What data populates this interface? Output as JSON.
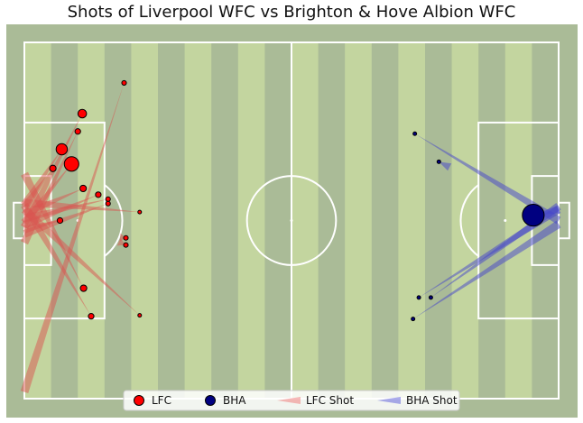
{
  "chart_data": {
    "type": "scatter",
    "title": "Shots of Liverpool WFC vs Brighton & Hove Albion WFC",
    "pitch": {
      "length": 120,
      "width": 80,
      "grass": "#aabb97",
      "stripe": "#c3d59f",
      "lines": "#ffffff"
    },
    "legend": {
      "placement": "bottom-center",
      "entries": [
        {
          "label": "LFC",
          "kind": "marker",
          "color": "#ff0000"
        },
        {
          "label": "BHA",
          "kind": "marker",
          "color": "#000080"
        },
        {
          "label": "LFC Shot",
          "kind": "arrow",
          "color": "#f08080"
        },
        {
          "label": "BHA Shot",
          "kind": "arrow",
          "color": "#6666dd"
        }
      ]
    },
    "series": [
      {
        "name": "LFC",
        "color": "#ff0000",
        "arrow_color": "#d9534f",
        "shots": [
          {
            "x": 22.4,
            "y": 9.1,
            "xg": 0.02,
            "end_x": 0,
            "end_y": 78.5
          },
          {
            "x": 13.0,
            "y": 16.0,
            "xg": 0.07,
            "end_x": 0,
            "end_y": 41.5
          },
          {
            "x": 12.0,
            "y": 20.0,
            "xg": 0.03,
            "end_x": 0,
            "end_y": 45.0
          },
          {
            "x": 10.6,
            "y": 27.3,
            "xg": 0.2,
            "end_x": 0,
            "end_y": 40.5
          },
          {
            "x": 13.2,
            "y": 32.8,
            "xg": 0.04,
            "end_x": 0,
            "end_y": 38.5
          },
          {
            "x": 16.6,
            "y": 34.2,
            "xg": 0.03,
            "end_x": 0,
            "end_y": 41.0
          },
          {
            "x": 18.8,
            "y": 35.2,
            "xg": 0.02,
            "end_x": 0,
            "end_y": 39.5
          },
          {
            "x": 18.8,
            "y": 36.2,
            "xg": 0.02,
            "end_x": 0,
            "end_y": 43.0
          },
          {
            "x": 25.9,
            "y": 38.1,
            "xg": 0.01,
            "end_x": 0,
            "end_y": 36.0
          },
          {
            "x": 22.8,
            "y": 43.9,
            "xg": 0.02,
            "end_x": 21.5,
            "end_y": 43.8
          },
          {
            "x": 22.8,
            "y": 45.5,
            "xg": 0.02,
            "end_x": 21.2,
            "end_y": 44.8
          },
          {
            "x": 13.3,
            "y": 55.2,
            "xg": 0.04,
            "end_x": 0,
            "end_y": 29.5
          },
          {
            "x": 15.0,
            "y": 61.5,
            "xg": 0.03,
            "end_x": 0,
            "end_y": 36.5
          },
          {
            "x": 25.9,
            "y": 61.3,
            "xg": 0.01,
            "end_x": 0,
            "end_y": 37.5
          },
          {
            "x": 6.4,
            "y": 28.3,
            "xg": 0.04,
            "end_x": 0,
            "end_y": 37.0
          },
          {
            "x": 8.4,
            "y": 24.0,
            "xg": 0.12,
            "end_x": 0,
            "end_y": 36.5
          },
          {
            "x": 8.0,
            "y": 40.0,
            "xg": 0.03,
            "end_x": 0,
            "end_y": 42.0
          }
        ]
      },
      {
        "name": "BHA",
        "color": "#000080",
        "arrow_color": "#4444cc",
        "shots": [
          {
            "x": 114.3,
            "y": 38.8,
            "xg": 0.45,
            "end_x": 120,
            "end_y": 37.5
          },
          {
            "x": 87.3,
            "y": 62.1,
            "xg": 0.01,
            "end_x": 120,
            "end_y": 40.8
          },
          {
            "x": 88.6,
            "y": 57.3,
            "xg": 0.01,
            "end_x": 120,
            "end_y": 37.5
          },
          {
            "x": 91.3,
            "y": 57.3,
            "xg": 0.01,
            "end_x": 120,
            "end_y": 36.8
          },
          {
            "x": 93.1,
            "y": 26.8,
            "xg": 0.01,
            "end_x": 95.5,
            "end_y": 28.0
          },
          {
            "x": 87.7,
            "y": 20.5,
            "xg": 0.01,
            "end_x": 120,
            "end_y": 40.0
          }
        ]
      }
    ]
  }
}
